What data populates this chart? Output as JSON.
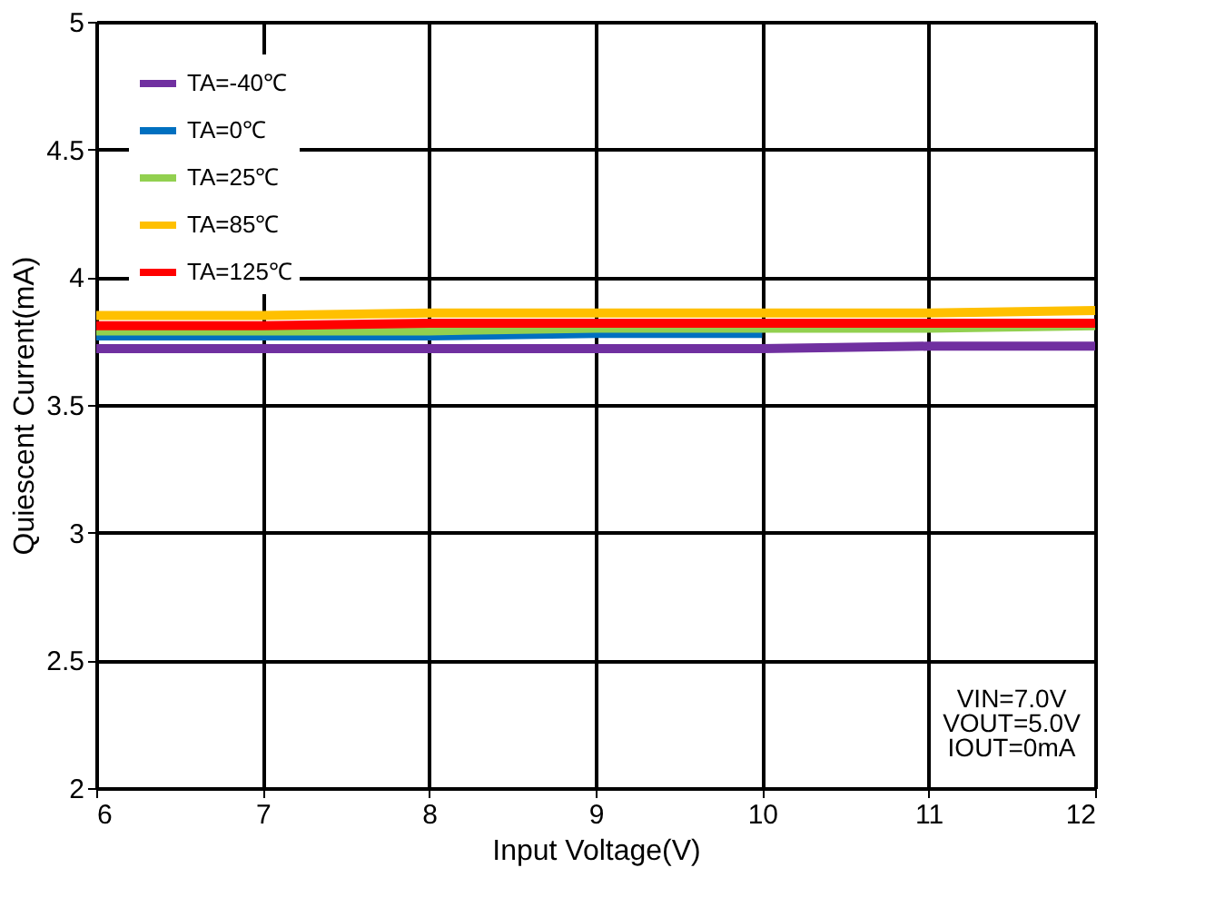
{
  "chart_data": {
    "type": "line",
    "xlabel": "Input Voltage(V)",
    "ylabel": "Quiescent Current(mA)",
    "x": [
      6,
      7,
      8,
      9,
      10,
      11,
      12
    ],
    "series": [
      {
        "name": "TA=-40℃",
        "color": "#7030a0",
        "values": [
          3.72,
          3.72,
          3.72,
          3.72,
          3.72,
          3.73,
          3.73
        ]
      },
      {
        "name": "TA=0℃",
        "color": "#0070c0",
        "values": [
          3.77,
          3.77,
          3.77,
          3.78,
          3.78,
          null,
          null
        ]
      },
      {
        "name": "TA=25℃",
        "color": "#92d050",
        "values": [
          3.79,
          3.79,
          3.79,
          3.8,
          3.8,
          3.8,
          3.81
        ]
      },
      {
        "name": "TA=85℃",
        "color": "#ffc000",
        "values": [
          3.85,
          3.85,
          3.86,
          3.86,
          3.86,
          3.86,
          3.87
        ]
      },
      {
        "name": "TA=125℃",
        "color": "#ff0000",
        "values": [
          3.81,
          3.81,
          3.82,
          3.82,
          3.82,
          3.82,
          3.82
        ]
      }
    ],
    "xlim": [
      6,
      12
    ],
    "xticks": [
      6,
      7,
      8,
      9,
      10,
      11,
      12
    ],
    "ylim": [
      2,
      5
    ],
    "yticks": [
      2,
      2.5,
      3,
      3.5,
      4,
      4.5,
      5
    ],
    "grid": true,
    "legend": "top left",
    "marker": "none",
    "line_style": "solid",
    "annotations": [
      "VIN=7.0V",
      "VOUT=5.0V",
      "IOUT=0mA"
    ]
  }
}
